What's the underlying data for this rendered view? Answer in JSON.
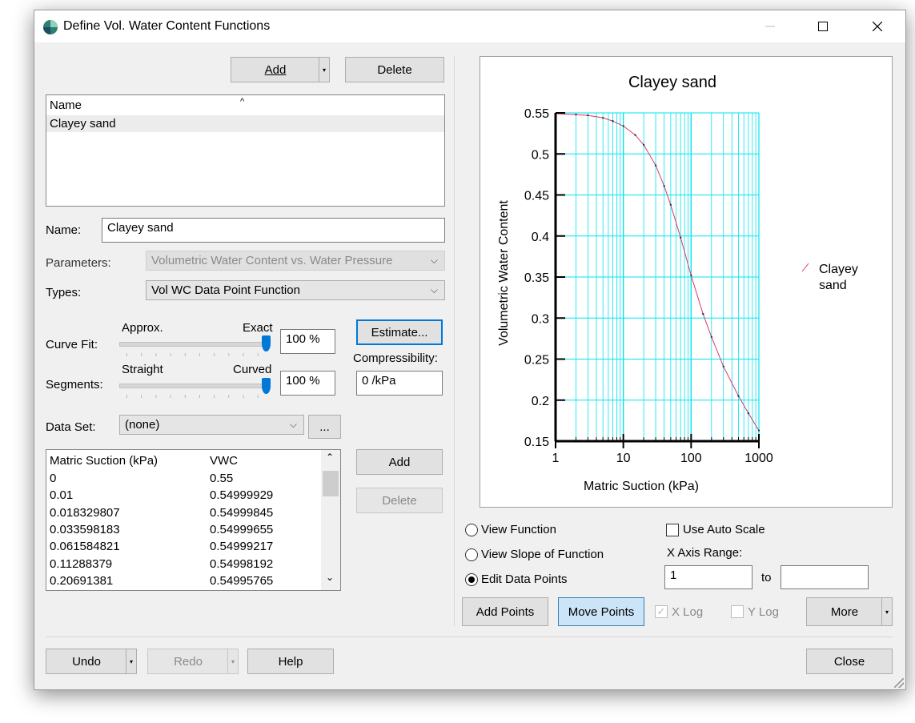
{
  "window": {
    "title": "Define Vol. Water Content Functions"
  },
  "list_toolbar": {
    "add_label": "Add",
    "delete_label": "Delete"
  },
  "functions_list": {
    "column_header": "Name",
    "items": [
      {
        "label": "Clayey sand",
        "selected": true
      }
    ]
  },
  "form": {
    "name_label": "Name:",
    "name_value": "Clayey sand",
    "parameters_label": "Parameters:",
    "parameters_value": "Volumetric Water Content vs. Water Pressure",
    "types_label": "Types:",
    "types_value": "Vol WC Data Point Function",
    "curve_fit_label": "Curve Fit:",
    "curve_fit_left": "Approx.",
    "curve_fit_right": "Exact",
    "curve_fit_value": "100 %",
    "curve_fit_level": 1.0,
    "segments_label": "Segments:",
    "segments_left": "Straight",
    "segments_right": "Curved",
    "segments_value": "100 %",
    "segments_level": 1.0,
    "estimate_label": "Estimate...",
    "compressibility_label": "Compressibility:",
    "compressibility_value": "0 /kPa",
    "dataset_label": "Data Set:",
    "dataset_value": "(none)",
    "dataset_more_label": "..."
  },
  "data_table": {
    "columns": [
      "Matric Suction (kPa)",
      "VWC"
    ],
    "rows": [
      [
        "0",
        "0.55"
      ],
      [
        "0.01",
        "0.54999929"
      ],
      [
        "0.018329807",
        "0.54999845"
      ],
      [
        "0.033598183",
        "0.54999655"
      ],
      [
        "0.061584821",
        "0.54999217"
      ],
      [
        "0.11288379",
        "0.54998192"
      ],
      [
        "0.20691381",
        "0.54995765"
      ]
    ],
    "add_label": "Add",
    "delete_label": "Delete"
  },
  "chart_data": {
    "type": "line",
    "title": "Clayey sand",
    "xlabel": "Matric Suction (kPa)",
    "ylabel": "Volumetric Water Content",
    "x_scale": "log",
    "xlim": [
      1,
      1000
    ],
    "ylim": [
      0.15,
      0.55
    ],
    "x_ticks": [
      "1",
      "10",
      "100",
      "1000"
    ],
    "y_ticks": [
      "0.15",
      "0.2",
      "0.25",
      "0.3",
      "0.35",
      "0.4",
      "0.45",
      "0.5",
      "0.55"
    ],
    "grid": true,
    "legend_position": "right",
    "series": [
      {
        "name": "Clayey sand",
        "color": "#d9386b",
        "x": [
          1,
          2,
          3,
          5,
          7,
          10,
          15,
          20,
          30,
          40,
          50,
          70,
          100,
          150,
          200,
          300,
          500,
          700,
          1000
        ],
        "y": [
          0.549,
          0.548,
          0.547,
          0.544,
          0.54,
          0.534,
          0.523,
          0.511,
          0.486,
          0.461,
          0.438,
          0.398,
          0.352,
          0.305,
          0.277,
          0.241,
          0.205,
          0.184,
          0.163
        ]
      }
    ]
  },
  "view_options": {
    "view_function": "View Function",
    "view_slope": "View Slope of Function",
    "edit_points": "Edit Data Points",
    "selected": "edit_points",
    "auto_scale_label": "Use Auto Scale",
    "auto_scale_checked": false,
    "x_range_label": "X Axis Range:",
    "x_range_from": "1",
    "x_range_to_label": "to",
    "x_range_to": "",
    "add_points_label": "Add Points",
    "move_points_label": "Move Points",
    "x_log_label": "X Log",
    "x_log_checked": true,
    "y_log_label": "Y Log",
    "y_log_checked": false,
    "more_label": "More"
  },
  "footer": {
    "undo_label": "Undo",
    "redo_label": "Redo",
    "help_label": "Help",
    "close_label": "Close"
  },
  "colors": {
    "accent": "#0078d7",
    "grid": "#00e5ee",
    "curve": "#d9386b"
  }
}
